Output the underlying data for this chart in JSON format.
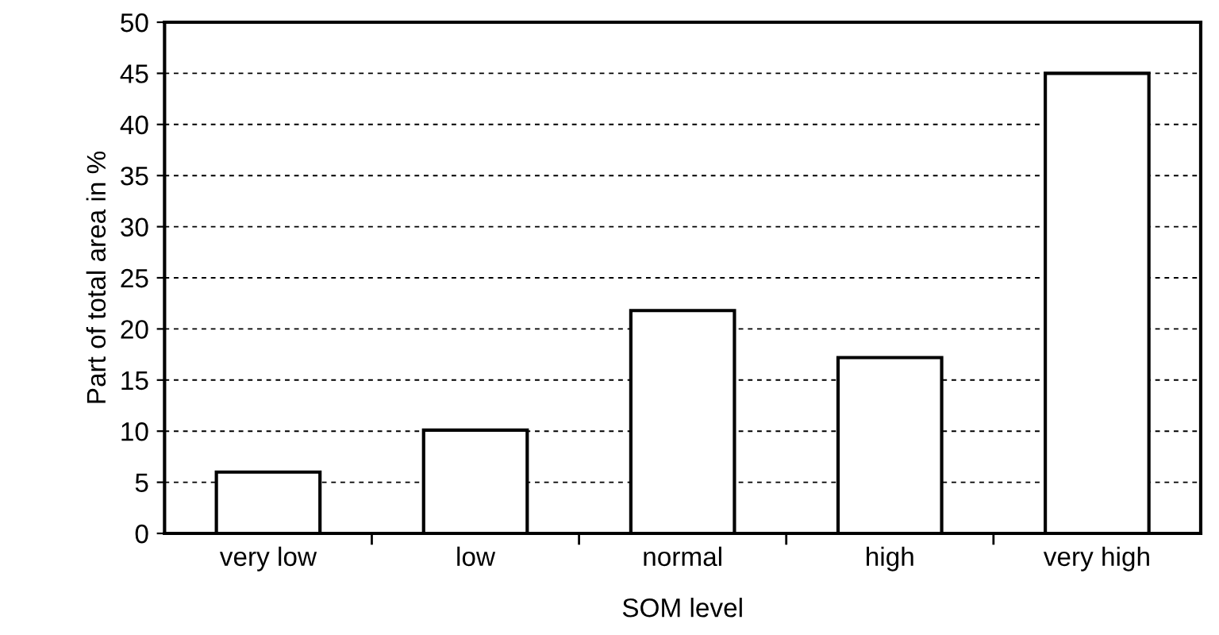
{
  "chart_data": {
    "type": "bar",
    "xlabel": "SOM level",
    "ylabel": "Part of total area in %",
    "categories": [
      "very low",
      "low",
      "normal",
      "high",
      "very high"
    ],
    "values": [
      6,
      10.1,
      21.8,
      17.2,
      45
    ],
    "color": "#ffffff",
    "ylim": [
      0,
      50
    ],
    "yticks": [
      0,
      5,
      10,
      15,
      20,
      25,
      30,
      35,
      40,
      45,
      50
    ],
    "grid": "y",
    "legend": false
  }
}
